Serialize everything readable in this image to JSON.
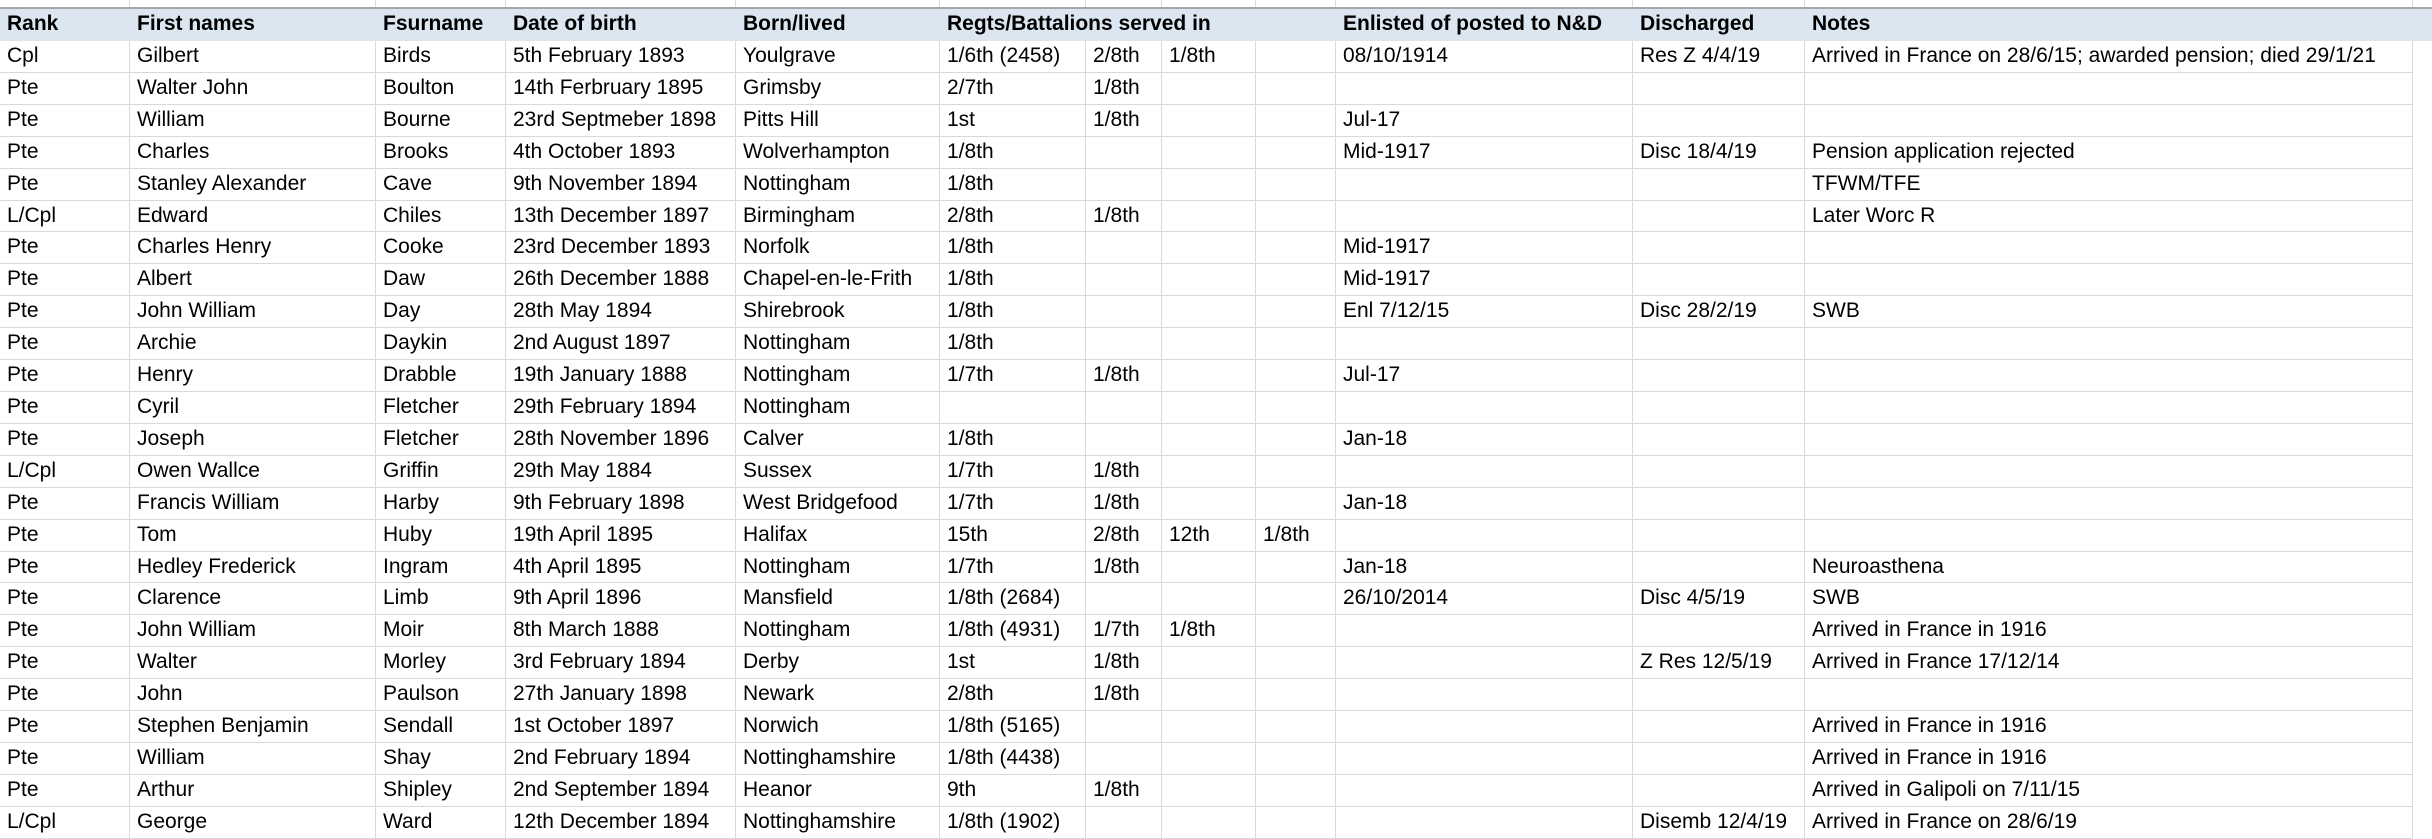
{
  "table": {
    "header": {
      "rank": "Rank",
      "first_names": "First names",
      "fsurname": "Fsurname",
      "date_of_birth": "Date of birth",
      "born_lived": "Born/lived",
      "regts": "Regts/Battalions served in",
      "enlisted": "Enlisted of posted to N&D",
      "discharged": "Discharged",
      "notes": "Notes"
    },
    "rows": [
      {
        "rank": "Cpl",
        "first_names": "Gilbert",
        "surname": "Birds",
        "dob": "5th February 1893",
        "born": "Youlgrave",
        "regts": [
          "1/6th (2458)",
          "2/8th",
          "1/8th",
          ""
        ],
        "enlisted": "08/10/1914",
        "discharged": "Res Z 4/4/19",
        "notes": "Arrived in France on 28/6/15; awarded pension; died 29/1/21"
      },
      {
        "rank": "Pte",
        "first_names": "Walter John",
        "surname": "Boulton",
        "dob": "14th Ferbruary 1895",
        "born": "Grimsby",
        "regts": [
          "2/7th",
          "1/8th",
          "",
          ""
        ],
        "enlisted": "",
        "discharged": "",
        "notes": ""
      },
      {
        "rank": "Pte",
        "first_names": "William",
        "surname": "Bourne",
        "dob": "23rd Septmeber 1898",
        "born": "Pitts Hill",
        "regts": [
          "1st",
          "1/8th",
          "",
          ""
        ],
        "enlisted": "Jul-17",
        "discharged": "",
        "notes": ""
      },
      {
        "rank": "Pte",
        "first_names": "Charles",
        "surname": "Brooks",
        "dob": "4th October 1893",
        "born": "Wolverhampton",
        "regts": [
          "1/8th",
          "",
          "",
          ""
        ],
        "enlisted": "Mid-1917",
        "discharged": "Disc 18/4/19",
        "notes": "Pension application rejected"
      },
      {
        "rank": "Pte",
        "first_names": "Stanley Alexander",
        "surname": "Cave",
        "dob": "9th November 1894",
        "born": "Nottingham",
        "regts": [
          "1/8th",
          "",
          "",
          ""
        ],
        "enlisted": "",
        "discharged": "",
        "notes": "TFWM/TFE"
      },
      {
        "rank": "L/Cpl",
        "first_names": "Edward",
        "surname": "Chiles",
        "dob": "13th December 1897",
        "born": "Birmingham",
        "regts": [
          "2/8th",
          "1/8th",
          "",
          ""
        ],
        "enlisted": "",
        "discharged": "",
        "notes": "Later Worc R"
      },
      {
        "rank": "Pte",
        "first_names": "Charles Henry",
        "surname": "Cooke",
        "dob": "23rd December 1893",
        "born": "Norfolk",
        "regts": [
          "1/8th",
          "",
          "",
          ""
        ],
        "enlisted": "Mid-1917",
        "discharged": "",
        "notes": ""
      },
      {
        "rank": "Pte",
        "first_names": "Albert",
        "surname": "Daw",
        "dob": "26th December 1888",
        "born": "Chapel-en-le-Frith",
        "regts": [
          "1/8th",
          "",
          "",
          ""
        ],
        "enlisted": "Mid-1917",
        "discharged": "",
        "notes": ""
      },
      {
        "rank": "Pte",
        "first_names": "John William",
        "surname": "Day",
        "dob": "28th May 1894",
        "born": "Shirebrook",
        "regts": [
          "1/8th",
          "",
          "",
          ""
        ],
        "enlisted": "Enl 7/12/15",
        "discharged": "Disc 28/2/19",
        "notes": "SWB"
      },
      {
        "rank": "Pte",
        "first_names": "Archie",
        "surname": "Daykin",
        "dob": "2nd August 1897",
        "born": "Nottingham",
        "regts": [
          "1/8th",
          "",
          "",
          ""
        ],
        "enlisted": "",
        "discharged": "",
        "notes": ""
      },
      {
        "rank": "Pte",
        "first_names": "Henry",
        "surname": "Drabble",
        "dob": "19th January 1888",
        "born": "Nottingham",
        "regts": [
          "1/7th",
          "1/8th",
          "",
          ""
        ],
        "enlisted": "Jul-17",
        "discharged": "",
        "notes": ""
      },
      {
        "rank": "Pte",
        "first_names": "Cyril",
        "surname": "Fletcher",
        "dob": "29th February 1894",
        "born": "Nottingham",
        "regts": [
          "",
          "",
          "",
          ""
        ],
        "enlisted": "",
        "discharged": "",
        "notes": ""
      },
      {
        "rank": "Pte",
        "first_names": "Joseph",
        "surname": "Fletcher",
        "dob": "28th November 1896",
        "born": "Calver",
        "regts": [
          "1/8th",
          "",
          "",
          ""
        ],
        "enlisted": "Jan-18",
        "discharged": "",
        "notes": ""
      },
      {
        "rank": "L/Cpl",
        "first_names": "Owen Wallce",
        "surname": "Griffin",
        "dob": "29th May 1884",
        "born": "Sussex",
        "regts": [
          "1/7th",
          "1/8th",
          "",
          ""
        ],
        "enlisted": "",
        "discharged": "",
        "notes": ""
      },
      {
        "rank": "Pte",
        "first_names": "Francis William",
        "surname": "Harby",
        "dob": "9th February 1898",
        "born": "West Bridgefood",
        "regts": [
          "1/7th",
          "1/8th",
          "",
          ""
        ],
        "enlisted": "Jan-18",
        "discharged": "",
        "notes": ""
      },
      {
        "rank": "Pte",
        "first_names": "Tom",
        "surname": "Huby",
        "dob": "19th April 1895",
        "born": "Halifax",
        "regts": [
          "15th",
          "2/8th",
          "12th",
          "1/8th"
        ],
        "enlisted": "",
        "discharged": "",
        "notes": ""
      },
      {
        "rank": "Pte",
        "first_names": "Hedley Frederick",
        "surname": "Ingram",
        "dob": "4th April 1895",
        "born": "Nottingham",
        "regts": [
          "1/7th",
          "1/8th",
          "",
          ""
        ],
        "enlisted": "Jan-18",
        "discharged": "",
        "notes": "Neuroasthena"
      },
      {
        "rank": "Pte",
        "first_names": "Clarence",
        "surname": "Limb",
        "dob": "9th April 1896",
        "born": "Mansfield",
        "regts": [
          "1/8th (2684)",
          "",
          "",
          ""
        ],
        "enlisted": "26/10/2014",
        "discharged": "Disc 4/5/19",
        "notes": "SWB"
      },
      {
        "rank": "Pte",
        "first_names": "John William",
        "surname": "Moir",
        "dob": "8th March 1888",
        "born": "Nottingham",
        "regts": [
          "1/8th (4931)",
          "1/7th",
          "1/8th",
          ""
        ],
        "enlisted": "",
        "discharged": "",
        "notes": "Arrived in France in 1916"
      },
      {
        "rank": "Pte",
        "first_names": "Walter",
        "surname": "Morley",
        "dob": "3rd February 1894",
        "born": "Derby",
        "regts": [
          "1st",
          "1/8th",
          "",
          ""
        ],
        "enlisted": "",
        "discharged": "Z Res 12/5/19",
        "notes": "Arrived in France 17/12/14"
      },
      {
        "rank": "Pte",
        "first_names": "John",
        "surname": "Paulson",
        "dob": "27th January 1898",
        "born": "Newark",
        "regts": [
          "2/8th",
          "1/8th",
          "",
          ""
        ],
        "enlisted": "",
        "discharged": "",
        "notes": ""
      },
      {
        "rank": "Pte",
        "first_names": "Stephen Benjamin",
        "surname": "Sendall",
        "dob": "1st October 1897",
        "born": "Norwich",
        "regts": [
          "1/8th (5165)",
          "",
          "",
          ""
        ],
        "enlisted": "",
        "discharged": "",
        "notes": "Arrived in France in 1916"
      },
      {
        "rank": "Pte",
        "first_names": "William",
        "surname": "Shay",
        "dob": "2nd February 1894",
        "born": "Nottinghamshire",
        "regts": [
          "1/8th (4438)",
          "",
          "",
          ""
        ],
        "enlisted": "",
        "discharged": "",
        "notes": "Arrived in France in 1916"
      },
      {
        "rank": "Pte",
        "first_names": "Arthur",
        "surname": "Shipley",
        "dob": "2nd September 1894",
        "born": "Heanor",
        "regts": [
          "9th",
          "1/8th",
          "",
          ""
        ],
        "enlisted": "",
        "discharged": "",
        "notes": "Arrived in Galipoli on 7/11/15"
      },
      {
        "rank": "L/Cpl",
        "first_names": "George",
        "surname": "Ward",
        "dob": "12th December 1894",
        "born": "Nottinghamshire",
        "regts": [
          "1/8th (1902)",
          "",
          "",
          ""
        ],
        "enlisted": "",
        "discharged": "Disemb 12/4/19",
        "notes": "Arrived in France on 28/6/19"
      }
    ]
  },
  "colors": {
    "header_bg": "#dce6f1",
    "gridline": "#d9d9d9",
    "sheet_top_border": "#a6a6a6",
    "text": "#000000"
  }
}
